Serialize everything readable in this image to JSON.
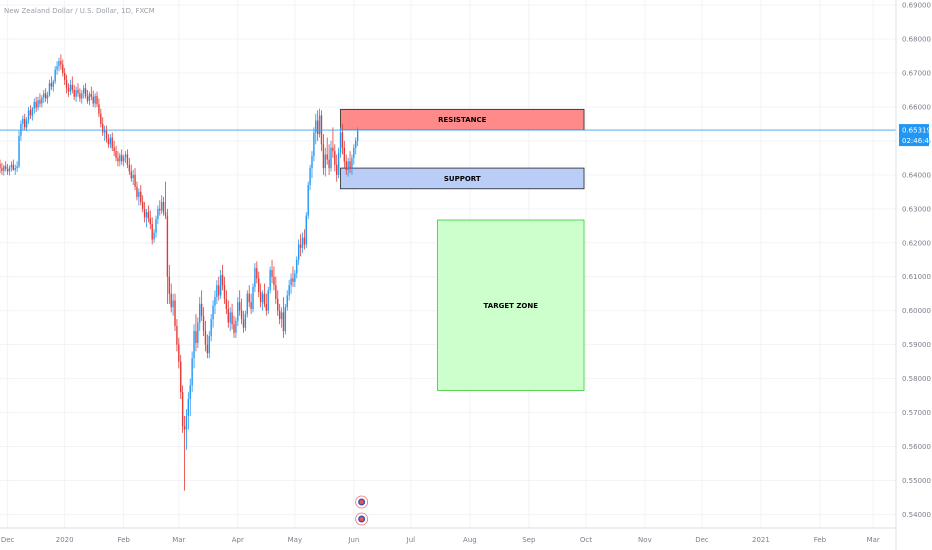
{
  "chart_data": {
    "type": "candlestick",
    "title": "New Zealand Dollar / U.S. Dollar, 1D, FXCM",
    "y_ticks": [
      "0.69000",
      "0.68000",
      "0.67000",
      "0.66000",
      "0.65000",
      "0.64000",
      "0.63000",
      "0.62000",
      "0.61000",
      "0.60000",
      "0.59000",
      "0.58000",
      "0.57000",
      "0.56000",
      "0.55000",
      "0.54000"
    ],
    "y_tick_values": [
      0.69,
      0.68,
      0.67,
      0.66,
      0.65,
      0.64,
      0.63,
      0.62,
      0.61,
      0.6,
      0.59,
      0.58,
      0.57,
      0.56,
      0.55,
      0.54
    ],
    "ylim": [
      0.536,
      0.6915
    ],
    "x_tick_labels": [
      "Dec",
      "2020",
      "Feb",
      "Mar",
      "Apr",
      "May",
      "Jun",
      "Jul",
      "Aug",
      "Sep",
      "Oct",
      "Nov",
      "Dec",
      "2021",
      "Feb",
      "Mar"
    ],
    "x_tick_days": [
      -30,
      0,
      31,
      60,
      91,
      121,
      152,
      182,
      213,
      244,
      274,
      305,
      335,
      366,
      397,
      425
    ],
    "xlim": [
      -34,
      437
    ],
    "last_price": "0.65319",
    "last_price_value": 0.65319,
    "countdown": "02:46:49",
    "colors": {
      "up": "#2196f3",
      "down": "#e53935",
      "price_line": "#3aa0f0"
    },
    "zones": [
      {
        "label": "RESISTANCE",
        "day_start": 145,
        "day_end": 273,
        "price_low": 0.6532,
        "price_high": 0.6593,
        "fill": "#ff8a8a",
        "stroke": "#222222"
      },
      {
        "label": "SUPPORT",
        "day_start": 145,
        "day_end": 273,
        "price_low": 0.6359,
        "price_high": 0.642,
        "fill": "#b9cdf7",
        "stroke": "#222222"
      },
      {
        "label": "TARGET ZONE",
        "day_start": 196,
        "day_end": 273,
        "price_low": 0.5765,
        "price_high": 0.6267,
        "fill": "#ccffcc",
        "stroke": "#33cc33"
      }
    ],
    "ohlc": [
      [
        -34,
        0.6432,
        0.6445,
        0.6405,
        0.642
      ],
      [
        -33,
        0.642,
        0.6435,
        0.64,
        0.6412
      ],
      [
        -32,
        0.6412,
        0.643,
        0.6398,
        0.6425
      ],
      [
        -31,
        0.6425,
        0.644,
        0.641,
        0.6418
      ],
      [
        -30,
        0.6418,
        0.6432,
        0.64,
        0.641
      ],
      [
        -29,
        0.641,
        0.6428,
        0.6398,
        0.6422
      ],
      [
        -28,
        0.6422,
        0.644,
        0.641,
        0.643
      ],
      [
        -27,
        0.643,
        0.6445,
        0.6412,
        0.6415
      ],
      [
        -26,
        0.6415,
        0.643,
        0.64,
        0.642
      ],
      [
        -25,
        0.642,
        0.644,
        0.6408,
        0.6425
      ],
      [
        -24,
        0.6425,
        0.653,
        0.642,
        0.6515
      ],
      [
        -23,
        0.6515,
        0.656,
        0.65,
        0.655
      ],
      [
        -22,
        0.655,
        0.6575,
        0.653,
        0.6565
      ],
      [
        -21,
        0.6565,
        0.658,
        0.653,
        0.654
      ],
      [
        -20,
        0.654,
        0.657,
        0.6528,
        0.656
      ],
      [
        -19,
        0.656,
        0.66,
        0.655,
        0.659
      ],
      [
        -18,
        0.659,
        0.6605,
        0.6565,
        0.6575
      ],
      [
        -17,
        0.6575,
        0.66,
        0.656,
        0.6595
      ],
      [
        -16,
        0.6595,
        0.6625,
        0.658,
        0.6615
      ],
      [
        -15,
        0.6615,
        0.663,
        0.6585,
        0.6598
      ],
      [
        -14,
        0.6598,
        0.663,
        0.659,
        0.662
      ],
      [
        -13,
        0.662,
        0.664,
        0.66,
        0.661
      ],
      [
        -12,
        0.661,
        0.6635,
        0.6598,
        0.6628
      ],
      [
        -11,
        0.6628,
        0.665,
        0.6612,
        0.664
      ],
      [
        -10,
        0.664,
        0.6655,
        0.6615,
        0.6625
      ],
      [
        -9,
        0.6625,
        0.6645,
        0.661,
        0.6635
      ],
      [
        -8,
        0.6635,
        0.668,
        0.663,
        0.667
      ],
      [
        -7,
        0.667,
        0.669,
        0.665,
        0.666
      ],
      [
        -6,
        0.666,
        0.668,
        0.6645,
        0.6675
      ],
      [
        -5,
        0.6675,
        0.672,
        0.6668,
        0.671
      ],
      [
        -4,
        0.671,
        0.6735,
        0.6695,
        0.672
      ],
      [
        -3,
        0.672,
        0.6745,
        0.6705,
        0.6735
      ],
      [
        -2,
        0.6735,
        0.6755,
        0.671,
        0.6725
      ],
      [
        -1,
        0.6725,
        0.674,
        0.669,
        0.67
      ],
      [
        0,
        0.67,
        0.6715,
        0.6665,
        0.668
      ],
      [
        1,
        0.668,
        0.6695,
        0.664,
        0.6655
      ],
      [
        2,
        0.6655,
        0.667,
        0.663,
        0.6645
      ],
      [
        3,
        0.6645,
        0.668,
        0.6635,
        0.6665
      ],
      [
        4,
        0.6665,
        0.669,
        0.664,
        0.665
      ],
      [
        5,
        0.665,
        0.6665,
        0.662,
        0.663
      ],
      [
        6,
        0.663,
        0.666,
        0.6615,
        0.665
      ],
      [
        7,
        0.665,
        0.667,
        0.663,
        0.664
      ],
      [
        8,
        0.664,
        0.6655,
        0.6615,
        0.6625
      ],
      [
        9,
        0.6625,
        0.665,
        0.661,
        0.664
      ],
      [
        10,
        0.664,
        0.6665,
        0.6625,
        0.6655
      ],
      [
        11,
        0.6655,
        0.667,
        0.6625,
        0.6632
      ],
      [
        12,
        0.6632,
        0.665,
        0.661,
        0.6618
      ],
      [
        13,
        0.6618,
        0.6645,
        0.6605,
        0.6638
      ],
      [
        14,
        0.6638,
        0.666,
        0.662,
        0.663
      ],
      [
        15,
        0.663,
        0.6648,
        0.66,
        0.661
      ],
      [
        16,
        0.661,
        0.664,
        0.6598,
        0.6632
      ],
      [
        17,
        0.6632,
        0.6645,
        0.66,
        0.6608
      ],
      [
        18,
        0.6608,
        0.6625,
        0.657,
        0.658
      ],
      [
        19,
        0.658,
        0.6595,
        0.654,
        0.655
      ],
      [
        20,
        0.655,
        0.657,
        0.6515,
        0.6525
      ],
      [
        21,
        0.6525,
        0.6545,
        0.65,
        0.653
      ],
      [
        22,
        0.653,
        0.6545,
        0.6495,
        0.6505
      ],
      [
        23,
        0.6505,
        0.652,
        0.648,
        0.649
      ],
      [
        24,
        0.649,
        0.652,
        0.6478,
        0.651
      ],
      [
        25,
        0.651,
        0.6525,
        0.647,
        0.648
      ],
      [
        26,
        0.648,
        0.65,
        0.6455,
        0.647
      ],
      [
        27,
        0.647,
        0.6485,
        0.644,
        0.645
      ],
      [
        28,
        0.645,
        0.647,
        0.6425,
        0.644
      ],
      [
        29,
        0.644,
        0.6465,
        0.6425,
        0.6458
      ],
      [
        30,
        0.6458,
        0.6475,
        0.643,
        0.644
      ],
      [
        31,
        0.644,
        0.646,
        0.6425,
        0.6452
      ],
      [
        32,
        0.6452,
        0.647,
        0.6435,
        0.646
      ],
      [
        33,
        0.646,
        0.6475,
        0.642,
        0.643
      ],
      [
        34,
        0.643,
        0.645,
        0.64,
        0.641
      ],
      [
        35,
        0.641,
        0.643,
        0.638,
        0.639
      ],
      [
        36,
        0.639,
        0.6415,
        0.637,
        0.64
      ],
      [
        37,
        0.64,
        0.642,
        0.6355,
        0.6365
      ],
      [
        38,
        0.6365,
        0.638,
        0.6325,
        0.6335
      ],
      [
        39,
        0.6335,
        0.636,
        0.631,
        0.635
      ],
      [
        40,
        0.635,
        0.637,
        0.631,
        0.632
      ],
      [
        41,
        0.632,
        0.634,
        0.629,
        0.63
      ],
      [
        42,
        0.63,
        0.632,
        0.626,
        0.6275
      ],
      [
        43,
        0.6275,
        0.63,
        0.6245,
        0.629
      ],
      [
        44,
        0.629,
        0.631,
        0.626,
        0.6272
      ],
      [
        45,
        0.6272,
        0.6295,
        0.624,
        0.6255
      ],
      [
        46,
        0.6255,
        0.6275,
        0.6195,
        0.621
      ],
      [
        47,
        0.621,
        0.624,
        0.62,
        0.623
      ],
      [
        48,
        0.623,
        0.628,
        0.6215,
        0.627
      ],
      [
        49,
        0.627,
        0.631,
        0.6255,
        0.63
      ],
      [
        50,
        0.63,
        0.6325,
        0.628,
        0.6295
      ],
      [
        51,
        0.6295,
        0.634,
        0.6285,
        0.632
      ],
      [
        52,
        0.632,
        0.6335,
        0.628,
        0.629
      ],
      [
        53,
        0.629,
        0.638,
        0.627,
        0.628
      ],
      [
        54,
        0.628,
        0.63,
        0.602,
        0.61
      ],
      [
        55,
        0.61,
        0.6135,
        0.602,
        0.605
      ],
      [
        56,
        0.605,
        0.608,
        0.5995,
        0.601
      ],
      [
        57,
        0.601,
        0.605,
        0.5985,
        0.603
      ],
      [
        58,
        0.603,
        0.605,
        0.594,
        0.5955
      ],
      [
        59,
        0.5955,
        0.5975,
        0.588,
        0.59
      ],
      [
        60,
        0.59,
        0.592,
        0.583,
        0.585
      ],
      [
        61,
        0.585,
        0.587,
        0.574,
        0.576
      ],
      [
        62,
        0.576,
        0.578,
        0.564,
        0.566
      ],
      [
        63,
        0.566,
        0.569,
        0.547,
        0.565
      ],
      [
        64,
        0.565,
        0.571,
        0.559,
        0.569
      ],
      [
        65,
        0.569,
        0.576,
        0.565,
        0.574
      ],
      [
        66,
        0.574,
        0.58,
        0.569,
        0.578
      ],
      [
        67,
        0.578,
        0.588,
        0.576,
        0.586
      ],
      [
        68,
        0.586,
        0.596,
        0.583,
        0.594
      ],
      [
        69,
        0.594,
        0.599,
        0.588,
        0.5905
      ],
      [
        70,
        0.5905,
        0.598,
        0.589,
        0.5965
      ],
      [
        71,
        0.5965,
        0.604,
        0.594,
        0.602
      ],
      [
        72,
        0.602,
        0.606,
        0.597,
        0.5985
      ],
      [
        73,
        0.5985,
        0.601,
        0.5925,
        0.594
      ],
      [
        74,
        0.594,
        0.597,
        0.588,
        0.59
      ],
      [
        75,
        0.59,
        0.593,
        0.586,
        0.5875
      ],
      [
        76,
        0.5875,
        0.594,
        0.586,
        0.5925
      ],
      [
        77,
        0.5925,
        0.599,
        0.591,
        0.5975
      ],
      [
        78,
        0.5975,
        0.603,
        0.595,
        0.6015
      ],
      [
        79,
        0.6015,
        0.606,
        0.599,
        0.604
      ],
      [
        80,
        0.604,
        0.609,
        0.602,
        0.6075
      ],
      [
        81,
        0.6075,
        0.61,
        0.603,
        0.6045
      ],
      [
        82,
        0.6045,
        0.612,
        0.6035,
        0.6105
      ],
      [
        83,
        0.6105,
        0.6135,
        0.606,
        0.6075
      ],
      [
        84,
        0.6075,
        0.61,
        0.602,
        0.6035
      ],
      [
        85,
        0.6035,
        0.606,
        0.599,
        0.6005
      ],
      [
        86,
        0.6005,
        0.603,
        0.595,
        0.5965
      ],
      [
        87,
        0.5965,
        0.601,
        0.594,
        0.5995
      ],
      [
        88,
        0.5995,
        0.602,
        0.5945,
        0.596
      ],
      [
        89,
        0.596,
        0.5985,
        0.592,
        0.5935
      ],
      [
        90,
        0.5935,
        0.598,
        0.592,
        0.597
      ],
      [
        91,
        0.597,
        0.604,
        0.5955,
        0.6025
      ],
      [
        92,
        0.6025,
        0.606,
        0.5985,
        0.6
      ],
      [
        93,
        0.6,
        0.6035,
        0.596,
        0.5975
      ],
      [
        94,
        0.5975,
        0.6,
        0.5935,
        0.595
      ],
      [
        95,
        0.595,
        0.6,
        0.594,
        0.599
      ],
      [
        96,
        0.599,
        0.606,
        0.598,
        0.605
      ],
      [
        97,
        0.605,
        0.6075,
        0.601,
        0.6025
      ],
      [
        98,
        0.6025,
        0.605,
        0.599,
        0.6005
      ],
      [
        99,
        0.6005,
        0.608,
        0.5995,
        0.607
      ],
      [
        100,
        0.607,
        0.614,
        0.6055,
        0.6125
      ],
      [
        101,
        0.6125,
        0.6145,
        0.608,
        0.6095
      ],
      [
        102,
        0.6095,
        0.6115,
        0.604,
        0.6055
      ],
      [
        103,
        0.6055,
        0.608,
        0.601,
        0.6025
      ],
      [
        104,
        0.6025,
        0.606,
        0.6,
        0.605
      ],
      [
        105,
        0.605,
        0.608,
        0.601,
        0.602
      ],
      [
        106,
        0.602,
        0.605,
        0.5985,
        0.6
      ],
      [
        107,
        0.6,
        0.607,
        0.599,
        0.606
      ],
      [
        108,
        0.606,
        0.613,
        0.605,
        0.612
      ],
      [
        109,
        0.612,
        0.615,
        0.608,
        0.61
      ],
      [
        110,
        0.61,
        0.613,
        0.606,
        0.6075
      ],
      [
        111,
        0.6075,
        0.61,
        0.602,
        0.6035
      ],
      [
        112,
        0.6035,
        0.606,
        0.5985,
        0.6
      ],
      [
        113,
        0.6,
        0.602,
        0.596,
        0.5975
      ],
      [
        114,
        0.5975,
        0.601,
        0.595,
        0.5995
      ],
      [
        115,
        0.5995,
        0.604,
        0.592,
        0.594
      ],
      [
        116,
        0.594,
        0.602,
        0.593,
        0.601
      ],
      [
        117,
        0.601,
        0.606,
        0.6,
        0.6045
      ],
      [
        118,
        0.6045,
        0.609,
        0.603,
        0.6075
      ],
      [
        119,
        0.6075,
        0.611,
        0.605,
        0.6095
      ],
      [
        120,
        0.6095,
        0.613,
        0.607,
        0.6085
      ],
      [
        121,
        0.6085,
        0.612,
        0.607,
        0.611
      ],
      [
        122,
        0.611,
        0.616,
        0.6095,
        0.615
      ],
      [
        123,
        0.615,
        0.621,
        0.6135,
        0.6195
      ],
      [
        124,
        0.6195,
        0.6225,
        0.616,
        0.6185
      ],
      [
        125,
        0.6185,
        0.623,
        0.617,
        0.6215
      ],
      [
        126,
        0.6215,
        0.624,
        0.618,
        0.6195
      ],
      [
        127,
        0.6195,
        0.629,
        0.6185,
        0.628
      ],
      [
        128,
        0.628,
        0.638,
        0.627,
        0.637
      ],
      [
        129,
        0.637,
        0.643,
        0.6355,
        0.642
      ],
      [
        130,
        0.642,
        0.647,
        0.639,
        0.6455
      ],
      [
        131,
        0.6455,
        0.654,
        0.644,
        0.6525
      ],
      [
        132,
        0.6525,
        0.658,
        0.649,
        0.656
      ],
      [
        133,
        0.656,
        0.659,
        0.65,
        0.652
      ],
      [
        134,
        0.652,
        0.6595,
        0.651,
        0.6575
      ],
      [
        135,
        0.6575,
        0.659,
        0.647,
        0.649
      ],
      [
        136,
        0.649,
        0.652,
        0.64,
        0.642
      ],
      [
        137,
        0.642,
        0.648,
        0.6395,
        0.646
      ],
      [
        138,
        0.646,
        0.651,
        0.643,
        0.6445
      ],
      [
        139,
        0.6445,
        0.649,
        0.64,
        0.642
      ],
      [
        140,
        0.642,
        0.65,
        0.641,
        0.648
      ],
      [
        141,
        0.648,
        0.654,
        0.645,
        0.647
      ],
      [
        142,
        0.647,
        0.649,
        0.641,
        0.643
      ],
      [
        143,
        0.643,
        0.646,
        0.638,
        0.64
      ],
      [
        144,
        0.64,
        0.648,
        0.639,
        0.6465
      ],
      [
        145,
        0.6465,
        0.654,
        0.645,
        0.6525
      ],
      [
        146,
        0.6525,
        0.655,
        0.646,
        0.648
      ],
      [
        147,
        0.648,
        0.65,
        0.642,
        0.644
      ],
      [
        148,
        0.644,
        0.646,
        0.64,
        0.6415
      ],
      [
        149,
        0.6415,
        0.645,
        0.6395,
        0.644
      ],
      [
        150,
        0.644,
        0.647,
        0.6405,
        0.642
      ],
      [
        151,
        0.642,
        0.646,
        0.64,
        0.645
      ],
      [
        152,
        0.645,
        0.649,
        0.643,
        0.648
      ],
      [
        153,
        0.648,
        0.651,
        0.646,
        0.65
      ],
      [
        154,
        0.65,
        0.654,
        0.6485,
        0.653
      ]
    ]
  }
}
